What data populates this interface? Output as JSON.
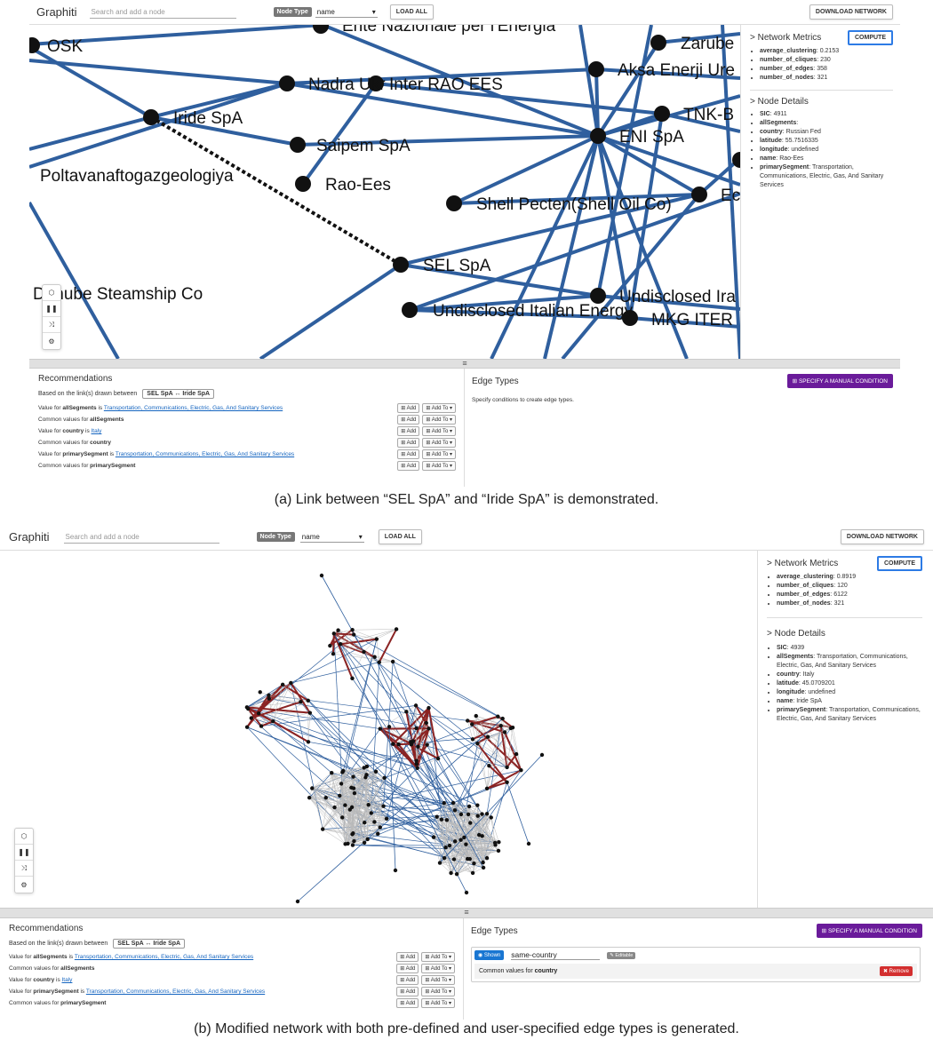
{
  "app": {
    "brand": "Graphiti",
    "search_placeholder": "Search and add a node",
    "node_type_label": "Node Type",
    "node_type_value": "name",
    "load_all": "LOAD ALL",
    "download": "DOWNLOAD NETWORK",
    "compute": "COMPUTE",
    "metrics_title": "> Network Metrics",
    "details_title": "> Node Details",
    "recommendations_title": "Recommendations",
    "based_on": "Based on the link(s) drawn between",
    "link_pill": "SEL SpA ↔ Iride SpA",
    "edge_types_title": "Edge Types",
    "specify_manual": "SPECIFY A MANUAL CONDITION",
    "edge_types_hint": "Specify conditions to create edge types.",
    "add_label": "Add",
    "add_to_label": "Add To",
    "divider_glyph": "≡"
  },
  "recommendations": [
    {
      "prefix": "Value for ",
      "attr": "allSegments",
      "mid": " is ",
      "link": "Transportation, Communications, Electric, Gas, And Sanitary Services"
    },
    {
      "prefix": "Common values for ",
      "attr": "allSegments",
      "mid": "",
      "link": ""
    },
    {
      "prefix": "Value for ",
      "attr": "country",
      "mid": " is ",
      "link": "Italy"
    },
    {
      "prefix": "Common values for ",
      "attr": "country",
      "mid": "",
      "link": ""
    },
    {
      "prefix": "Value for ",
      "attr": "primarySegment",
      "mid": " is ",
      "link": "Transportation, Communications, Electric, Gas, And Sanitary Services"
    },
    {
      "prefix": "Common values for ",
      "attr": "primarySegment",
      "mid": "",
      "link": ""
    }
  ],
  "panel_a": {
    "metrics": [
      {
        "key": "average_clustering",
        "value": "0.2153"
      },
      {
        "key": "number_of_cliques",
        "value": "230"
      },
      {
        "key": "number_of_edges",
        "value": "358"
      },
      {
        "key": "number_of_nodes",
        "value": "321"
      }
    ],
    "details": [
      {
        "key": "SIC",
        "value": "4911"
      },
      {
        "key": "allSegments",
        "value": ""
      },
      {
        "key": "country",
        "value": "Russian Fed"
      },
      {
        "key": "latitude",
        "value": "55.7516335"
      },
      {
        "key": "longitude",
        "value": "undefined"
      },
      {
        "key": "name",
        "value": "Rao-Ees"
      },
      {
        "key": "primarySegment",
        "value": "Transportation, Communications, Electric, Gas, And Sanitary Services"
      }
    ],
    "graph_labels": {
      "osk": "OSK",
      "ente": "Ente Nazionale per l'Energia",
      "zarube": "Zarube",
      "nadra": "Nadra Ukr",
      "inter_rao": "Inter RAO EES",
      "aksa": "Aksa Enerji Ure",
      "iride": "Iride SpA",
      "tnk": "TNK-B",
      "saipem": "Saipem SpA",
      "eni": "ENI SpA",
      "poltava": "Poltavanaftogazgeologiya",
      "rao": "Rao-Ees",
      "shell": "Shell Pecten(Shell Oil Co)",
      "ec": "Ec",
      "sel": "SEL SpA",
      "danube": "Danube Steamship Co",
      "und_ira": "Undisclosed Ira",
      "und_ital": "Undisclosed Italian Energy",
      "mkg": "MKG ITER"
    },
    "caption": "(a) Link between “SEL SpA” and “Iride SpA” is demonstrated."
  },
  "panel_b": {
    "metrics": [
      {
        "key": "average_clustering",
        "value": "0.8919"
      },
      {
        "key": "number_of_cliques",
        "value": "120"
      },
      {
        "key": "number_of_edges",
        "value": "6122"
      },
      {
        "key": "number_of_nodes",
        "value": "321"
      }
    ],
    "details": [
      {
        "key": "SIC",
        "value": "4939"
      },
      {
        "key": "allSegments",
        "value": "Transportation, Communications, Electric, Gas, And Sanitary Services"
      },
      {
        "key": "country",
        "value": "Italy"
      },
      {
        "key": "latitude",
        "value": "45.0709201"
      },
      {
        "key": "longitude",
        "value": "undefined"
      },
      {
        "key": "name",
        "value": "Iride SpA"
      },
      {
        "key": "primarySegment",
        "value": "Transportation, Communications, Electric, Gas, And Sanitary Services"
      }
    ],
    "edge_type": {
      "shown": "◉ Shown",
      "name": "same-country",
      "editable": "✎ Editable",
      "condition": "Common values for ",
      "condition_attr": "country",
      "remove": "✖ Remove"
    },
    "caption": "(b) Modified network with both pre-defined and user-specified edge types is generated."
  },
  "colors": {
    "edge_blue": "#2f5f9e",
    "edge_red": "#8b2323",
    "accent_purple": "#6a1b9a"
  }
}
